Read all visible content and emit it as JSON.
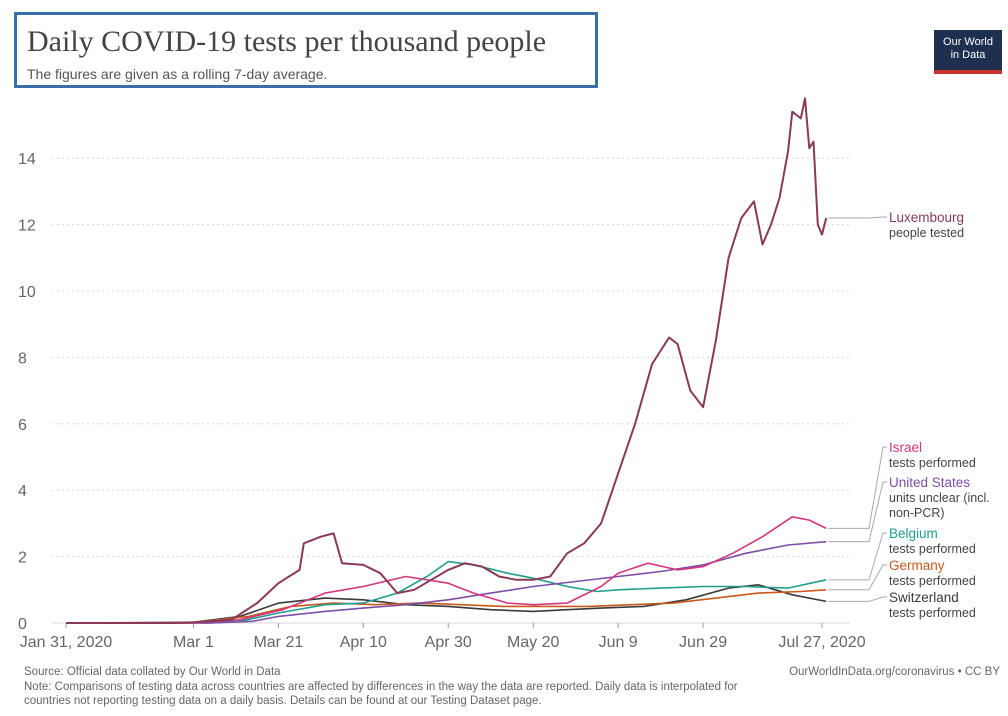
{
  "header": {
    "title": "Daily COVID-19 tests per thousand people",
    "subtitle": "The figures are given as a rolling 7-day average.",
    "logo_text": [
      "Our World",
      "in Data"
    ]
  },
  "footer": {
    "source": "Source: Official data collated by Our World in Data",
    "url": "OurWorldInData.org/coronavirus • CC BY",
    "note_line1": "Note: Comparisons of testing data across countries are affected by differences in the way the data are reported. Daily data is interpolated for",
    "note_line2": "countries not reporting testing data on a daily basis. Details can be found at our Testing Dataset page."
  },
  "colors": {
    "luxembourg": "#8b3a55",
    "israel": "#d4357f",
    "united_states": "#7d4ea8",
    "belgium": "#1f9e8e",
    "germany": "#c8581e",
    "switzerland": "#3a3a3a",
    "grid": "#d8d8d8",
    "axis_text": "#666666"
  },
  "chart_data": {
    "type": "line",
    "title": "Daily COVID-19 tests per thousand people",
    "subtitle": "The figures are given as a rolling 7-day average.",
    "x_ticks": [
      {
        "date": "2020-01-31",
        "label": "Jan 31, 2020"
      },
      {
        "date": "2020-03-01",
        "label": "Mar 1"
      },
      {
        "date": "2020-03-21",
        "label": "Mar 21"
      },
      {
        "date": "2020-04-10",
        "label": "Apr 10"
      },
      {
        "date": "2020-04-30",
        "label": "Apr 30"
      },
      {
        "date": "2020-05-20",
        "label": "May 20"
      },
      {
        "date": "2020-06-09",
        "label": "Jun 9"
      },
      {
        "date": "2020-06-29",
        "label": "Jun 29"
      },
      {
        "date": "2020-07-27",
        "label": "Jul 27, 2020"
      }
    ],
    "xlim": [
      "2020-01-31",
      "2020-07-27"
    ],
    "y_ticks": [
      0,
      2,
      4,
      6,
      8,
      10,
      12,
      14
    ],
    "ylim": [
      0,
      15.5
    ],
    "grid": "horizontal dotted",
    "legend": "right-side line labels",
    "series": [
      {
        "name": "Luxembourg",
        "subtitle": "people tested",
        "color_key": "luxembourg",
        "points": [
          [
            "2020-01-31",
            0
          ],
          [
            "2020-02-25",
            0
          ],
          [
            "2020-03-01",
            0.02
          ],
          [
            "2020-03-10",
            0.1
          ],
          [
            "2020-03-16",
            0.6
          ],
          [
            "2020-03-21",
            1.2
          ],
          [
            "2020-03-26",
            1.6
          ],
          [
            "2020-03-27",
            2.4
          ],
          [
            "2020-03-31",
            2.6
          ],
          [
            "2020-04-03",
            2.7
          ],
          [
            "2020-04-05",
            1.8
          ],
          [
            "2020-04-10",
            1.75
          ],
          [
            "2020-04-14",
            1.5
          ],
          [
            "2020-04-18",
            0.9
          ],
          [
            "2020-04-22",
            1.0
          ],
          [
            "2020-04-26",
            1.3
          ],
          [
            "2020-04-30",
            1.6
          ],
          [
            "2020-05-04",
            1.8
          ],
          [
            "2020-05-08",
            1.7
          ],
          [
            "2020-05-12",
            1.4
          ],
          [
            "2020-05-16",
            1.3
          ],
          [
            "2020-05-20",
            1.3
          ],
          [
            "2020-05-24",
            1.4
          ],
          [
            "2020-05-28",
            2.1
          ],
          [
            "2020-06-01",
            2.4
          ],
          [
            "2020-06-05",
            3.0
          ],
          [
            "2020-06-09",
            4.5
          ],
          [
            "2020-06-13",
            6.0
          ],
          [
            "2020-06-17",
            7.8
          ],
          [
            "2020-06-21",
            8.6
          ],
          [
            "2020-06-23",
            8.4
          ],
          [
            "2020-06-26",
            7.0
          ],
          [
            "2020-06-29",
            6.5
          ],
          [
            "2020-07-02",
            8.5
          ],
          [
            "2020-07-05",
            11.0
          ],
          [
            "2020-07-08",
            12.2
          ],
          [
            "2020-07-11",
            12.7
          ],
          [
            "2020-07-13",
            11.4
          ],
          [
            "2020-07-15",
            12.0
          ],
          [
            "2020-07-17",
            12.8
          ],
          [
            "2020-07-19",
            14.2
          ],
          [
            "2020-07-20",
            15.4
          ],
          [
            "2020-07-22",
            15.2
          ],
          [
            "2020-07-23",
            15.8
          ],
          [
            "2020-07-24",
            14.3
          ],
          [
            "2020-07-25",
            14.5
          ],
          [
            "2020-07-26",
            12.0
          ],
          [
            "2020-07-27",
            11.7
          ],
          [
            "2020-07-28",
            12.2
          ]
        ]
      },
      {
        "name": "Israel",
        "subtitle": "tests performed",
        "color_key": "israel",
        "points": [
          [
            "2020-01-31",
            0
          ],
          [
            "2020-03-01",
            0
          ],
          [
            "2020-03-12",
            0.1
          ],
          [
            "2020-03-22",
            0.4
          ],
          [
            "2020-04-01",
            0.9
          ],
          [
            "2020-04-10",
            1.1
          ],
          [
            "2020-04-20",
            1.4
          ],
          [
            "2020-04-30",
            1.2
          ],
          [
            "2020-05-06",
            0.9
          ],
          [
            "2020-05-14",
            0.6
          ],
          [
            "2020-05-20",
            0.55
          ],
          [
            "2020-05-28",
            0.6
          ],
          [
            "2020-06-05",
            1.1
          ],
          [
            "2020-06-09",
            1.5
          ],
          [
            "2020-06-16",
            1.8
          ],
          [
            "2020-06-23",
            1.6
          ],
          [
            "2020-06-29",
            1.7
          ],
          [
            "2020-07-06",
            2.1
          ],
          [
            "2020-07-13",
            2.6
          ],
          [
            "2020-07-20",
            3.2
          ],
          [
            "2020-07-24",
            3.1
          ],
          [
            "2020-07-28",
            2.85
          ]
        ]
      },
      {
        "name": "United States",
        "subtitle": "units unclear (incl. non-PCR)",
        "color_key": "united_states",
        "points": [
          [
            "2020-01-31",
            0
          ],
          [
            "2020-03-05",
            0
          ],
          [
            "2020-03-15",
            0.05
          ],
          [
            "2020-03-21",
            0.2
          ],
          [
            "2020-04-01",
            0.35
          ],
          [
            "2020-04-10",
            0.45
          ],
          [
            "2020-04-20",
            0.55
          ],
          [
            "2020-04-30",
            0.7
          ],
          [
            "2020-05-10",
            0.9
          ],
          [
            "2020-05-20",
            1.1
          ],
          [
            "2020-05-30",
            1.25
          ],
          [
            "2020-06-09",
            1.4
          ],
          [
            "2020-06-19",
            1.55
          ],
          [
            "2020-06-29",
            1.75
          ],
          [
            "2020-07-09",
            2.1
          ],
          [
            "2020-07-19",
            2.35
          ],
          [
            "2020-07-28",
            2.45
          ]
        ]
      },
      {
        "name": "Belgium",
        "subtitle": "tests performed",
        "color_key": "belgium",
        "points": [
          [
            "2020-01-31",
            0
          ],
          [
            "2020-03-05",
            0
          ],
          [
            "2020-03-12",
            0.05
          ],
          [
            "2020-03-21",
            0.3
          ],
          [
            "2020-04-01",
            0.55
          ],
          [
            "2020-04-10",
            0.6
          ],
          [
            "2020-04-18",
            0.9
          ],
          [
            "2020-04-25",
            1.4
          ],
          [
            "2020-04-30",
            1.85
          ],
          [
            "2020-05-06",
            1.75
          ],
          [
            "2020-05-14",
            1.5
          ],
          [
            "2020-05-20",
            1.35
          ],
          [
            "2020-05-28",
            1.1
          ],
          [
            "2020-06-04",
            0.95
          ],
          [
            "2020-06-09",
            1.0
          ],
          [
            "2020-06-19",
            1.05
          ],
          [
            "2020-06-29",
            1.1
          ],
          [
            "2020-07-09",
            1.1
          ],
          [
            "2020-07-19",
            1.05
          ],
          [
            "2020-07-28",
            1.3
          ]
        ]
      },
      {
        "name": "Germany",
        "subtitle": "tests performed",
        "color_key": "germany",
        "points": [
          [
            "2020-01-31",
            0
          ],
          [
            "2020-03-01",
            0.01
          ],
          [
            "2020-03-14",
            0.2
          ],
          [
            "2020-03-24",
            0.5
          ],
          [
            "2020-04-03",
            0.6
          ],
          [
            "2020-04-13",
            0.55
          ],
          [
            "2020-04-23",
            0.6
          ],
          [
            "2020-05-03",
            0.55
          ],
          [
            "2020-05-13",
            0.5
          ],
          [
            "2020-05-23",
            0.5
          ],
          [
            "2020-06-02",
            0.5
          ],
          [
            "2020-06-12",
            0.55
          ],
          [
            "2020-06-22",
            0.6
          ],
          [
            "2020-07-02",
            0.75
          ],
          [
            "2020-07-12",
            0.9
          ],
          [
            "2020-07-22",
            0.95
          ],
          [
            "2020-07-28",
            1.0
          ]
        ]
      },
      {
        "name": "Switzerland",
        "subtitle": "tests performed",
        "color_key": "switzerland",
        "points": [
          [
            "2020-01-31",
            0
          ],
          [
            "2020-03-01",
            0.02
          ],
          [
            "2020-03-12",
            0.2
          ],
          [
            "2020-03-21",
            0.6
          ],
          [
            "2020-04-01",
            0.75
          ],
          [
            "2020-04-10",
            0.7
          ],
          [
            "2020-04-20",
            0.55
          ],
          [
            "2020-04-30",
            0.5
          ],
          [
            "2020-05-10",
            0.4
          ],
          [
            "2020-05-20",
            0.35
          ],
          [
            "2020-05-28",
            0.4
          ],
          [
            "2020-06-05",
            0.45
          ],
          [
            "2020-06-15",
            0.5
          ],
          [
            "2020-06-25",
            0.7
          ],
          [
            "2020-07-05",
            1.05
          ],
          [
            "2020-07-12",
            1.15
          ],
          [
            "2020-07-20",
            0.85
          ],
          [
            "2020-07-28",
            0.65
          ]
        ]
      }
    ]
  }
}
